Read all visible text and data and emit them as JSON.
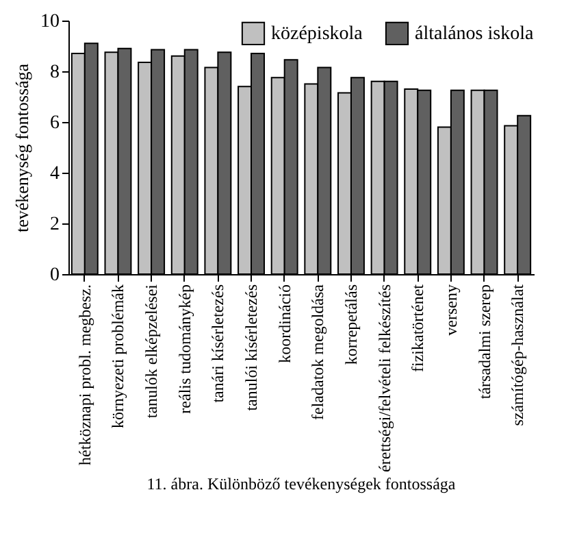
{
  "chart_data": {
    "type": "bar",
    "ylabel": "tevékenység fontossága",
    "categories": [
      "hétköznapi probl. megbesz.",
      "környezeti problémák",
      "tanulók elképzelései",
      "reális tudománykép",
      "tanári kísérletezés",
      "tanulói kísérletezés",
      "koordináció",
      "feladatok megoldása",
      "korrepetálás",
      "érettségi/felvételi felkészítés",
      "fizikatörténet",
      "verseny",
      "társadalmi szerep",
      "számítógép-használat"
    ],
    "series": [
      {
        "name": "középiskola",
        "color": "#c0c0c0",
        "values": [
          8.7,
          8.75,
          8.35,
          8.6,
          8.15,
          7.4,
          7.75,
          7.5,
          7.15,
          7.6,
          7.3,
          5.8,
          7.25,
          5.85
        ]
      },
      {
        "name": "általános iskola",
        "color": "#606060",
        "values": [
          9.1,
          8.9,
          8.85,
          8.85,
          8.75,
          8.7,
          8.45,
          8.15,
          7.75,
          7.6,
          7.25,
          7.25,
          7.25,
          6.25
        ]
      }
    ],
    "ylim": [
      0,
      10
    ],
    "yticks": [
      0,
      2,
      4,
      6,
      8,
      10
    ],
    "grid": false,
    "legend": "top right",
    "annotations": [
      "11. ábra. Különböző tevékenységek fontossága"
    ]
  }
}
